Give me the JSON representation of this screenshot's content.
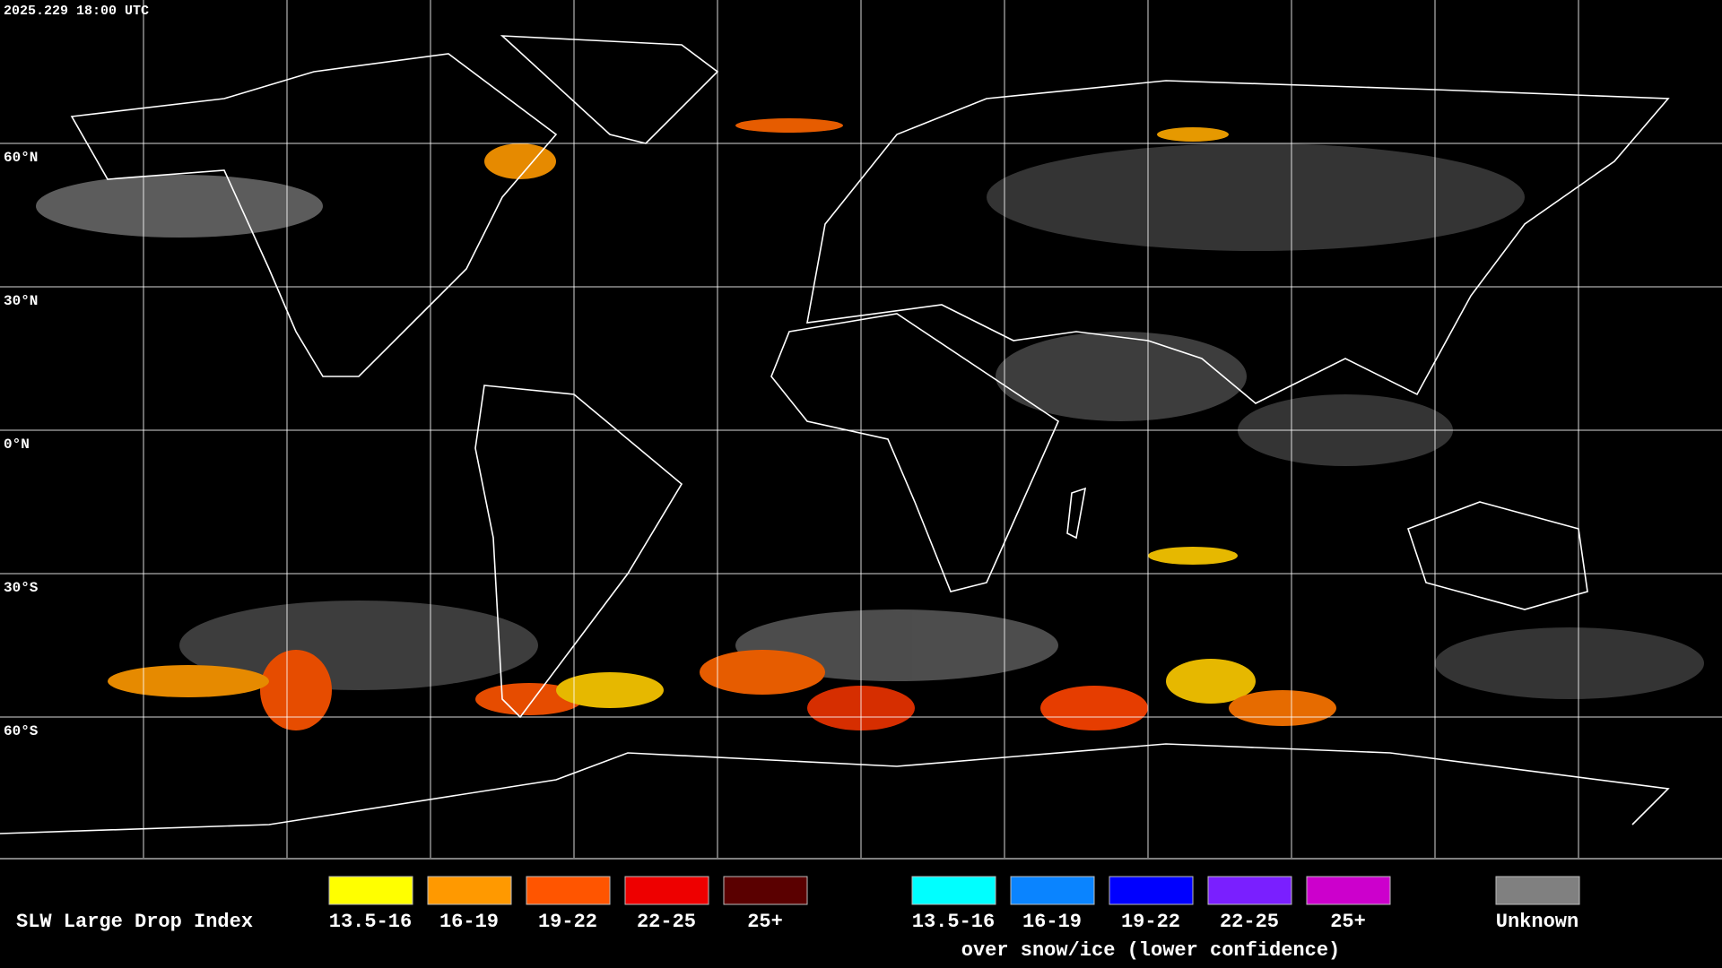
{
  "header": {
    "timestamp": "2025.229 18:00 UTC"
  },
  "map": {
    "latitude_labels": [
      "60°N",
      "30°N",
      "0°N",
      "30°S",
      "60°S"
    ]
  },
  "legend": {
    "title": "SLW Large Drop Index",
    "groups": [
      {
        "items": [
          {
            "label": "13.5-16",
            "color": "#ffff00"
          },
          {
            "label": "16-19",
            "color": "#ff9900"
          },
          {
            "label": "19-22",
            "color": "#ff5500"
          },
          {
            "label": "22-25",
            "color": "#ee0000"
          },
          {
            "label": "25+",
            "color": "#5a0000"
          }
        ]
      },
      {
        "items": [
          {
            "label": "13.5-16",
            "color": "#00ffff"
          },
          {
            "label": "16-19",
            "color": "#0a84ff"
          },
          {
            "label": "19-22",
            "color": "#0000ff"
          },
          {
            "label": "22-25",
            "color": "#7a1fff"
          },
          {
            "label": "25+",
            "color": "#cc00cc"
          }
        ],
        "caption": "over snow/ice (lower confidence)"
      },
      {
        "items": [
          {
            "label": "Unknown",
            "color": "#808080"
          }
        ]
      }
    ]
  }
}
